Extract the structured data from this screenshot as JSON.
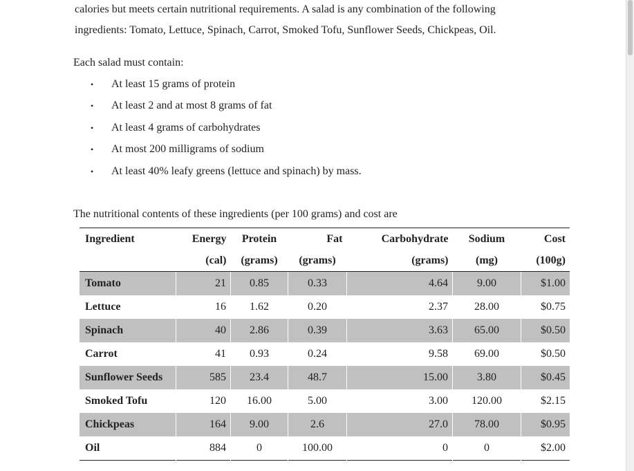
{
  "intro_paragraph": {
    "line1": "calories but meets certain nutritional requirements.  A salad is any combination of the following",
    "line2": "ingredients:  Tomato, Lettuce, Spinach, Carrot, Smoked Tofu, Sunflower Seeds, Chickpeas, Oil."
  },
  "requirements": {
    "heading": "Each salad must contain:",
    "bullet_glyph": "•",
    "items": [
      "At least 15 grams of protein",
      "At least 2 and at most 8 grams of fat",
      "At least 4 grams of carbohydrates",
      "At most 200 milligrams of sodium",
      "At least 40% leafy greens (lettuce and spinach) by mass."
    ]
  },
  "table_intro": "The nutritional contents of these ingredients (per 100 grams) and cost are",
  "table": {
    "headers": {
      "ingredient": "Ingredient",
      "energy": "Energy",
      "protein": "Protein",
      "fat": "Fat",
      "carb": "Carbohydrate",
      "sodium": "Sodium",
      "cost": "Cost"
    },
    "units": {
      "energy": "(cal)",
      "protein": "(grams)",
      "fat": "(grams)",
      "carb": "(grams)",
      "sodium": "(mg)",
      "cost": "(100g)"
    },
    "rows": [
      {
        "name": "Tomato",
        "energy": "21",
        "protein": "0.85",
        "fat": "0.33",
        "carb": "4.64",
        "sodium": "9.00",
        "cost": "$1.00"
      },
      {
        "name": "Lettuce",
        "energy": "16",
        "protein": "1.62",
        "fat": "0.20",
        "carb": "2.37",
        "sodium": "28.00",
        "cost": "$0.75"
      },
      {
        "name": "Spinach",
        "energy": "40",
        "protein": "2.86",
        "fat": "0.39",
        "carb": "3.63",
        "sodium": "65.00",
        "cost": "$0.50"
      },
      {
        "name": "Carrot",
        "energy": "41",
        "protein": "0.93",
        "fat": "0.24",
        "carb": "9.58",
        "sodium": "69.00",
        "cost": "$0.50"
      },
      {
        "name": "Sunflower Seeds",
        "energy": "585",
        "protein": "23.4",
        "fat": "48.7",
        "carb": "15.00",
        "sodium": "3.80",
        "cost": "$0.45"
      },
      {
        "name": "Smoked Tofu",
        "energy": "120",
        "protein": "16.00",
        "fat": "5.00",
        "carb": "3.00",
        "sodium": "120.00",
        "cost": "$2.15"
      },
      {
        "name": "Chickpeas",
        "energy": "164",
        "protein": "9.00",
        "fat": "2.6",
        "carb": "27.0",
        "sodium": "78.00",
        "cost": "$0.95"
      },
      {
        "name": "Oil",
        "energy": "884",
        "protein": "0",
        "fat": "100.00",
        "carb": "0",
        "sodium": "0",
        "cost": "$2.00"
      }
    ]
  },
  "colors": {
    "shaded_row": "#c0c0c0",
    "text": "#222222",
    "rule": "#222222"
  }
}
